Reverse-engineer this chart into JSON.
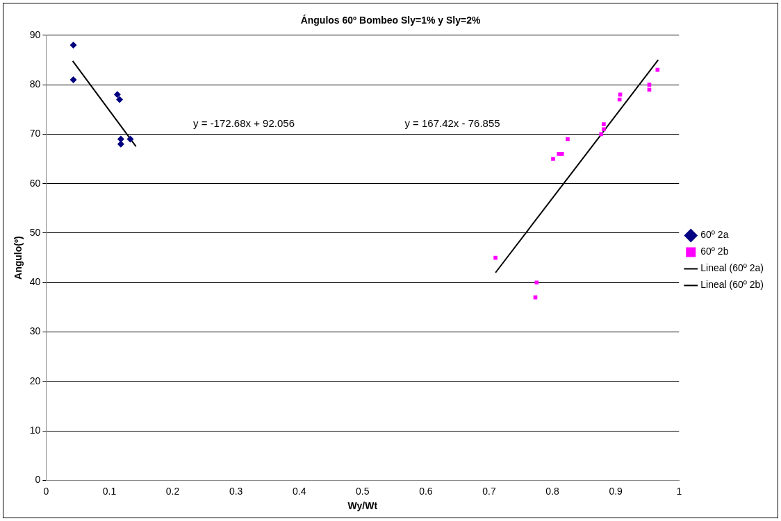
{
  "chart_data": {
    "type": "scatter",
    "title": "Ángulos 60º Bombeo Sly=1% y Sly=2%",
    "xlabel": "Wy/Wt",
    "ylabel": "Angulo(º)",
    "xlim": [
      0,
      1
    ],
    "xticks": [
      0,
      0.1,
      0.2,
      0.3,
      0.4,
      0.5,
      0.6,
      0.7,
      0.8,
      0.9,
      1
    ],
    "ylim": [
      0,
      90
    ],
    "yticks": [
      0,
      10,
      20,
      30,
      40,
      50,
      60,
      70,
      80,
      90
    ],
    "grid": "y",
    "legend": "right",
    "series": [
      {
        "name": "60º 2a",
        "color": "#000080",
        "marker": "diamond",
        "x": [
          0.043,
          0.043,
          0.1125,
          0.116,
          0.118,
          0.118,
          0.133
        ],
        "values": [
          88,
          81,
          78,
          77,
          69,
          68,
          69
        ]
      },
      {
        "name": "60º 2b",
        "color": "#ff00ff",
        "marker": "square",
        "x": [
          0.71,
          0.775,
          0.773,
          0.801,
          0.81,
          0.815,
          0.824,
          0.877,
          0.881,
          0.881,
          0.906,
          0.907,
          0.953,
          0.953,
          0.966
        ],
        "values": [
          45,
          40,
          37,
          65,
          66,
          66,
          69,
          70,
          72,
          71,
          77,
          78,
          80,
          79,
          83
        ]
      },
      {
        "name": "Lineal (60º 2a)",
        "type": "line",
        "color": "#000000",
        "marker": "none",
        "x": [
          0.042,
          0.142
        ],
        "values": [
          84.8,
          67.5
        ]
      },
      {
        "name": "Lineal (60º 2b)",
        "type": "line",
        "color": "#000000",
        "marker": "none",
        "x": [
          0.71,
          0.967
        ],
        "values": [
          42,
          85
        ]
      }
    ],
    "annotations": [
      "y = -172.68x + 92.056",
      "y = 167.42x - 76.855"
    ]
  }
}
